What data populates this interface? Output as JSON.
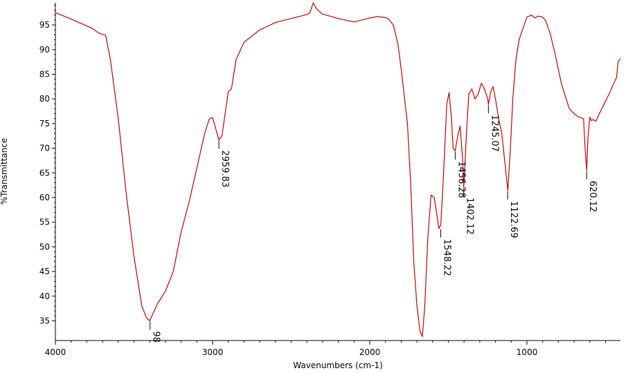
{
  "chart_data": {
    "type": "line",
    "title": "",
    "xlabel": "Wavenumbers (cm-1)",
    "ylabel": "%Transmittance",
    "xlim": [
      4000,
      405
    ],
    "ylim": [
      31,
      99.5
    ],
    "x_reversed": true,
    "grid": false,
    "x_ticks": [
      4000,
      3000,
      2000,
      1000
    ],
    "y_ticks": [
      35,
      40,
      45,
      50,
      55,
      60,
      65,
      70,
      75,
      80,
      85,
      90,
      95
    ],
    "x_tick_labels": [
      "4000",
      "3000",
      "2000",
      "1000"
    ],
    "y_tick_labels": [
      "35",
      "40",
      "45",
      "50",
      "55",
      "60",
      "65",
      "70",
      "75",
      "80",
      "85",
      "90",
      "95"
    ],
    "line_color": "#c00000",
    "series": [
      {
        "x": [
          4000,
          3900,
          3800,
          3760,
          3740,
          3720,
          3700,
          3680,
          3650,
          3600,
          3550,
          3500,
          3450,
          3420,
          3400,
          3380,
          3350,
          3300,
          3250,
          3200,
          3150,
          3100,
          3050,
          3020,
          3000,
          2980,
          2960,
          2940,
          2920,
          2900,
          2880,
          2850,
          2800,
          2700,
          2600,
          2500,
          2400,
          2380,
          2360,
          2345,
          2330,
          2300,
          2200,
          2100,
          2000,
          1950,
          1900,
          1880,
          1850,
          1820,
          1800,
          1760,
          1740,
          1720,
          1700,
          1680,
          1665,
          1650,
          1630,
          1610,
          1590,
          1575,
          1560,
          1548,
          1530,
          1510,
          1495,
          1480,
          1470,
          1456,
          1440,
          1425,
          1410,
          1402,
          1385,
          1370,
          1350,
          1330,
          1310,
          1290,
          1270,
          1250,
          1245,
          1230,
          1215,
          1200,
          1180,
          1160,
          1140,
          1122,
          1105,
          1090,
          1070,
          1050,
          1030,
          1000,
          970,
          950,
          930,
          900,
          880,
          850,
          820,
          800,
          780,
          760,
          730,
          700,
          680,
          660,
          640,
          630,
          620,
          612,
          600,
          590,
          580,
          560,
          540,
          500,
          470,
          450,
          430,
          420,
          410,
          405
        ],
        "y": [
          97.5,
          96.2,
          94.8,
          94.2,
          93.7,
          93.3,
          93.1,
          92.9,
          88,
          76,
          61,
          48,
          38,
          35.6,
          35.0,
          36.4,
          38.5,
          41,
          45,
          53,
          59,
          66,
          73,
          76,
          76.2,
          74,
          71.7,
          72.5,
          77,
          81.5,
          82,
          88,
          91.5,
          94,
          95.5,
          96.3,
          97.1,
          97.5,
          99.5,
          98.6,
          98,
          97.2,
          96.3,
          95.6,
          96.4,
          96.7,
          96.5,
          96.2,
          95,
          91,
          86,
          75,
          63,
          47,
          38,
          32.8,
          31.8,
          38,
          52,
          60.5,
          60,
          57,
          53.7,
          54.5,
          65,
          79,
          81.3,
          76,
          70,
          69.5,
          72.5,
          74.5,
          68,
          62.1,
          73,
          81,
          82,
          80,
          81,
          83.2,
          82,
          80,
          78.9,
          81.5,
          82.5,
          80,
          76,
          73,
          67,
          61.4,
          70,
          80,
          88,
          92,
          93.8,
          96.6,
          97,
          96.4,
          96.8,
          96.6,
          95.8,
          93,
          89,
          86,
          83,
          81,
          78,
          77,
          76.5,
          76.2,
          76,
          70,
          65.5,
          72,
          76.3,
          75.6,
          75.8,
          75.5,
          77,
          79.5,
          81.5,
          83,
          84.3,
          87.5,
          88,
          88.2
        ]
      }
    ],
    "peaks": [
      {
        "x": 3398,
        "y": 35.0,
        "label": "98"
      },
      {
        "x": 2959.83,
        "y": 71.7,
        "label": "2959.83"
      },
      {
        "x": 1548.22,
        "y": 53.7,
        "label": "1548.22"
      },
      {
        "x": 1456.28,
        "y": 69.5,
        "label": "1456.28"
      },
      {
        "x": 1402.12,
        "y": 62.1,
        "label": "1402.12"
      },
      {
        "x": 1245.07,
        "y": 78.9,
        "label": "1245.07"
      },
      {
        "x": 1122.69,
        "y": 61.4,
        "label": "1122.69"
      },
      {
        "x": 620.12,
        "y": 65.5,
        "label": "620.12"
      }
    ]
  }
}
